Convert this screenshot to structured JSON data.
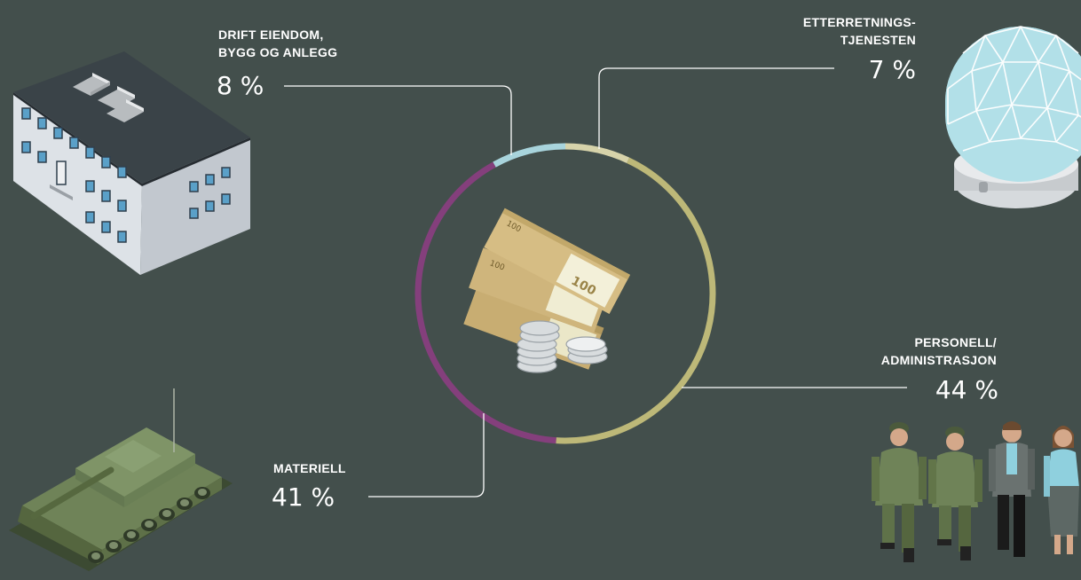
{
  "chart_data": {
    "type": "donut",
    "title": "",
    "segments": [
      {
        "name": "PERSONELL/ ADMINISTRASJON",
        "value": 44,
        "label": "44 %",
        "color": "#bdb878"
      },
      {
        "name": "MATERIELL",
        "value": 41,
        "label": "41 %",
        "color": "#843f7c"
      },
      {
        "name": "DRIFT EIENDOM, BYGG OG ANLEGG",
        "value": 8,
        "label": "8 %",
        "color": "#a8d4dc"
      },
      {
        "name": "ETTERRETNINGSTJENESTEN",
        "value": 7,
        "label": "7 %",
        "color": "#d7d3aa"
      }
    ]
  },
  "labels": {
    "drift": {
      "line1": "DRIFT EIENDOM,",
      "line2": "BYGG OG ANLEGG",
      "pct": "8 %"
    },
    "etterretning": {
      "line1": "ETTERRETNINGS-",
      "line2": "TJENESTEN",
      "pct": "7 %"
    },
    "personell": {
      "line1": "PERSONELL/",
      "line2": "ADMINISTRASJON",
      "pct": "44 %"
    },
    "materiell": {
      "line1": "MATERIELL",
      "pct": "41 %"
    }
  },
  "illustrations": {
    "center": "money-icon",
    "drift": "building-icon",
    "etterretning": "radar-dome-icon",
    "personell": "people-icon",
    "materiell": "tank-icon"
  },
  "colors": {
    "background": "#434f4c",
    "leader_line": "#ffffff"
  }
}
